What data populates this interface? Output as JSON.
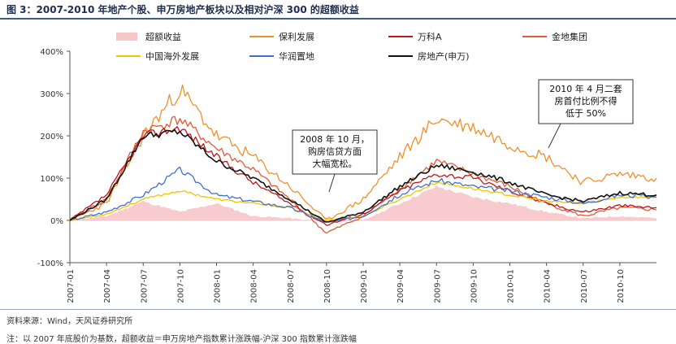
{
  "figure": {
    "title": "图 3：2007-2010 年地产个股、申万房地产板块以及相对沪深 300 的超额收益",
    "source": "资料来源：Wind，天风证券研究所",
    "note": "注：以 2007 年底股价为基数，超额收益＝申万房地产指数累计涨跌幅-沪深 300 指数累计涨跌幅"
  },
  "colors": {
    "excess": "#f7c6c9",
    "poly": "#f0902a",
    "vanke": "#c0171c",
    "gemdale": "#e05a33",
    "coli": "#f2c400",
    "cr_land": "#3f6fd0",
    "sw_re": "#111111"
  },
  "chart_data": {
    "type": "line",
    "x": [
      "2007-01",
      "2007-04",
      "2007-07",
      "2007-10",
      "2008-01",
      "2008-04",
      "2008-07",
      "2008-10",
      "2009-01",
      "2009-04",
      "2009-07",
      "2009-10",
      "2010-01",
      "2010-04",
      "2010-07",
      "2010-10",
      "2010-12"
    ],
    "ylim": [
      -100,
      400
    ],
    "yticks": [
      -100,
      0,
      100,
      200,
      300,
      400
    ],
    "ytick_labels": [
      "-100%",
      "0%",
      "100%",
      "200%",
      "300%",
      "400%"
    ],
    "xtick_labels": [
      "2007-01",
      "2007-04",
      "2007-07",
      "2007-10",
      "2008-01",
      "2008-04",
      "2008-07",
      "2008-10",
      "2009-01",
      "2009-04",
      "2009-07",
      "2009-10",
      "2010-01",
      "2010-04",
      "2010-07",
      "2010-10"
    ],
    "legend": "top",
    "series": [
      {
        "key": "excess",
        "name": "超额收益",
        "style": "area",
        "values": [
          0,
          10,
          45,
          20,
          40,
          10,
          5,
          -5,
          0,
          40,
          80,
          55,
          40,
          20,
          5,
          10,
          5
        ]
      },
      {
        "key": "poly",
        "name": "保利发展",
        "style": "line",
        "values": [
          0,
          40,
          200,
          310,
          200,
          150,
          80,
          0,
          50,
          150,
          240,
          220,
          180,
          150,
          90,
          110,
          100
        ]
      },
      {
        "key": "vanke",
        "name": "万科A",
        "style": "line",
        "values": [
          0,
          60,
          200,
          220,
          150,
          90,
          40,
          -10,
          15,
          70,
          110,
          100,
          70,
          40,
          20,
          35,
          30
        ]
      },
      {
        "key": "gemdale",
        "name": "金地集团",
        "style": "line",
        "values": [
          0,
          50,
          210,
          240,
          170,
          120,
          50,
          -30,
          10,
          75,
          140,
          110,
          80,
          40,
          10,
          30,
          25
        ]
      },
      {
        "key": "coli",
        "name": "中国海外发展",
        "style": "line",
        "values": [
          0,
          15,
          50,
          70,
          50,
          40,
          30,
          0,
          10,
          50,
          90,
          75,
          60,
          45,
          40,
          55,
          55
        ]
      },
      {
        "key": "cr_land",
        "name": "华润置地",
        "style": "line",
        "values": [
          0,
          20,
          60,
          120,
          60,
          45,
          30,
          -5,
          10,
          60,
          95,
          80,
          70,
          55,
          40,
          60,
          55
        ]
      },
      {
        "key": "sw_re",
        "name": "房地产(申万)",
        "style": "line",
        "values": [
          0,
          50,
          200,
          210,
          140,
          100,
          50,
          -5,
          20,
          80,
          130,
          115,
          90,
          60,
          45,
          65,
          60
        ]
      }
    ],
    "annotations": [
      {
        "lines": [
          "2008 年 10 月，",
          "购房信贷方面",
          "大幅宽松。"
        ]
      },
      {
        "lines": [
          "2010 年 4 月二套",
          "房首付比例不得",
          "低于 50%"
        ]
      }
    ]
  }
}
